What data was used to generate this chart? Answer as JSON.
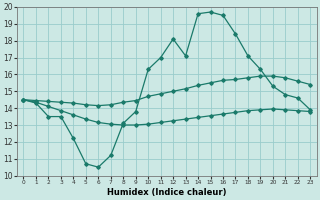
{
  "xlabel": "Humidex (Indice chaleur)",
  "bg_color": "#cce8e4",
  "grid_color": "#99cccc",
  "line_color": "#1a7a6a",
  "xlim": [
    -0.5,
    23.5
  ],
  "ylim": [
    10,
    20
  ],
  "xticks": [
    0,
    1,
    2,
    3,
    4,
    5,
    6,
    7,
    8,
    9,
    10,
    11,
    12,
    13,
    14,
    15,
    16,
    17,
    18,
    19,
    20,
    21,
    22,
    23
  ],
  "yticks": [
    10,
    11,
    12,
    13,
    14,
    15,
    16,
    17,
    18,
    19,
    20
  ],
  "series": [
    {
      "x": [
        0,
        1,
        2,
        3,
        4,
        5,
        6,
        7,
        8,
        9,
        10,
        11,
        12,
        13,
        14,
        15,
        16,
        17,
        18,
        19,
        20,
        21,
        22,
        23
      ],
      "y": [
        14.5,
        14.3,
        13.5,
        13.5,
        12.2,
        10.7,
        10.5,
        11.2,
        13.1,
        13.8,
        16.3,
        17.0,
        18.1,
        17.1,
        19.6,
        19.7,
        19.5,
        18.4,
        17.1,
        16.3,
        15.3,
        14.8,
        14.6,
        13.9
      ]
    },
    {
      "x": [
        0,
        1,
        2,
        3,
        4,
        5,
        6,
        7,
        8,
        9,
        10,
        11,
        12,
        13,
        14,
        15,
        16,
        17,
        18,
        19,
        20,
        21,
        22,
        23
      ],
      "y": [
        14.5,
        14.45,
        14.4,
        14.35,
        14.3,
        14.2,
        14.15,
        14.2,
        14.35,
        14.45,
        14.7,
        14.85,
        15.0,
        15.15,
        15.35,
        15.5,
        15.65,
        15.7,
        15.8,
        15.9,
        15.9,
        15.8,
        15.6,
        15.4
      ]
    },
    {
      "x": [
        0,
        1,
        2,
        3,
        4,
        5,
        6,
        7,
        8,
        9,
        10,
        11,
        12,
        13,
        14,
        15,
        16,
        17,
        18,
        19,
        20,
        21,
        22,
        23
      ],
      "y": [
        14.5,
        14.35,
        14.1,
        13.85,
        13.6,
        13.35,
        13.15,
        13.05,
        13.0,
        13.0,
        13.05,
        13.15,
        13.25,
        13.35,
        13.45,
        13.55,
        13.65,
        13.75,
        13.85,
        13.9,
        13.95,
        13.9,
        13.85,
        13.8
      ]
    }
  ]
}
